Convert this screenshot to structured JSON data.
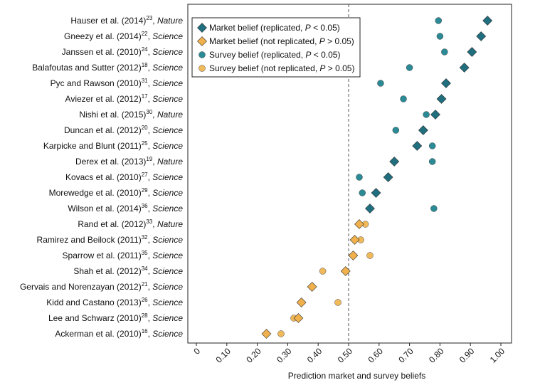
{
  "chart_data": {
    "type": "scatter",
    "title": "",
    "xlabel": "Prediction market and survey beliefs",
    "ylabel": "",
    "xlim": [
      0,
      1
    ],
    "x_ticks": [
      "0",
      "0.10",
      "0.20",
      "0.30",
      "0.40",
      "0.50",
      "0.60",
      "0.70",
      "0.80",
      "0.90",
      "1.00"
    ],
    "reference_line": {
      "x": 0.5,
      "style": "dashed"
    },
    "grid": false,
    "legend_position": "top-left",
    "legend": [
      {
        "key": "market_replicated",
        "marker": "diamond",
        "color": "#1f6f7f",
        "parts": [
          "Market belief (replicated, ",
          "P",
          " < 0.05)"
        ]
      },
      {
        "key": "market_not_replicated",
        "marker": "diamond",
        "color": "#f0b04c",
        "parts": [
          "Market belief (not replicated, ",
          "P",
          " > 0.05)"
        ]
      },
      {
        "key": "survey_replicated",
        "marker": "circle",
        "color": "#2a8a96",
        "parts": [
          "Survey belief (replicated, ",
          "P",
          " < 0.05)"
        ]
      },
      {
        "key": "survey_not_replicated",
        "marker": "circle",
        "color": "#f0b95a",
        "parts": [
          "Survey belief (not replicated, ",
          "P",
          " > 0.05)"
        ]
      }
    ],
    "studies": [
      {
        "authors": "Hauser et al. (2014)",
        "ref": "23",
        "journal": "Nature",
        "replicated": true,
        "market": 0.956,
        "survey": 0.795
      },
      {
        "authors": "Gneezy et al. (2014)",
        "ref": "22",
        "journal": "Science",
        "replicated": true,
        "market": 0.935,
        "survey": 0.8
      },
      {
        "authors": "Janssen et al. (2010)",
        "ref": "24",
        "journal": "Science",
        "replicated": true,
        "market": 0.905,
        "survey": 0.815
      },
      {
        "authors": "Balafoutas and Sutter (2012)",
        "ref": "18",
        "journal": "Science",
        "replicated": true,
        "market": 0.88,
        "survey": 0.7
      },
      {
        "authors": "Pyc and Rawson (2010)",
        "ref": "31",
        "journal": "Science",
        "replicated": true,
        "market": 0.82,
        "survey": 0.605
      },
      {
        "authors": "Aviezer et al. (2012)",
        "ref": "17",
        "journal": "Science",
        "replicated": true,
        "market": 0.805,
        "survey": 0.68
      },
      {
        "authors": "Nishi et al. (2015)",
        "ref": "30",
        "journal": "Nature",
        "replicated": true,
        "market": 0.785,
        "survey": 0.755
      },
      {
        "authors": "Duncan et al. (2012)",
        "ref": "20",
        "journal": "Science",
        "replicated": true,
        "market": 0.745,
        "survey": 0.655
      },
      {
        "authors": "Karpicke and Blunt (2011)",
        "ref": "25",
        "journal": "Science",
        "replicated": true,
        "market": 0.725,
        "survey": 0.775
      },
      {
        "authors": "Derex et al. (2013)",
        "ref": "19",
        "journal": "Nature",
        "replicated": true,
        "market": 0.65,
        "survey": 0.775
      },
      {
        "authors": "Kovacs et al. (2010)",
        "ref": "27",
        "journal": "Science",
        "replicated": true,
        "market": 0.63,
        "survey": 0.535
      },
      {
        "authors": "Morewedge et al. (2010)",
        "ref": "29",
        "journal": "Science",
        "replicated": true,
        "market": 0.59,
        "survey": 0.545
      },
      {
        "authors": "Wilson et al. (2014)",
        "ref": "36",
        "journal": "Science",
        "replicated": true,
        "market": 0.57,
        "survey": 0.78
      },
      {
        "authors": "Rand et al. (2012)",
        "ref": "33",
        "journal": "Nature",
        "replicated": false,
        "market": 0.535,
        "survey": 0.555
      },
      {
        "authors": "Ramirez and Beilock (2011)",
        "ref": "32",
        "journal": "Science",
        "replicated": false,
        "market": 0.52,
        "survey": 0.54
      },
      {
        "authors": "Sparrow et al. (2011)",
        "ref": "35",
        "journal": "Science",
        "replicated": false,
        "market": 0.515,
        "survey": 0.57
      },
      {
        "authors": "Shah et al. (2012)",
        "ref": "34",
        "journal": "Science",
        "replicated": false,
        "market": 0.49,
        "survey": 0.415
      },
      {
        "authors": "Gervais and Norenzayan (2012)",
        "ref": "21",
        "journal": "Science",
        "replicated": false,
        "market": 0.38,
        "survey": null
      },
      {
        "authors": "Kidd and Castano (2013)",
        "ref": "26",
        "journal": "Science",
        "replicated": false,
        "market": 0.345,
        "survey": 0.465
      },
      {
        "authors": "Lee and Schwarz (2010)",
        "ref": "28",
        "journal": "Science",
        "replicated": false,
        "market": 0.335,
        "survey": 0.32
      },
      {
        "authors": "Ackerman et al. (2010)",
        "ref": "16",
        "journal": "Science",
        "replicated": false,
        "market": 0.23,
        "survey": 0.278
      }
    ]
  }
}
